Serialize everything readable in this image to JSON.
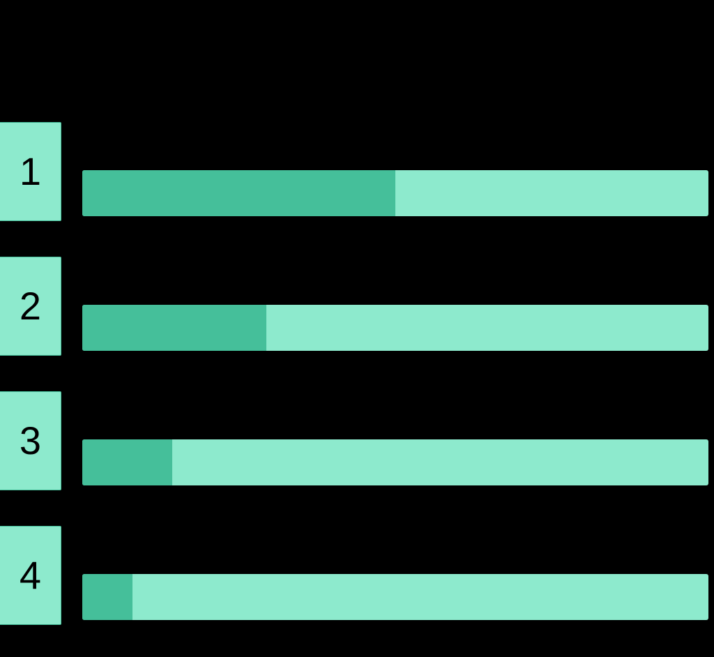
{
  "colors": {
    "background": "#000000",
    "track": "#8deacd",
    "fill": "#45bf9a",
    "box_border": "#45bf9a",
    "label_text": "#000000"
  },
  "rows": [
    {
      "rank": "1",
      "fraction": 0.5
    },
    {
      "rank": "2",
      "fraction": 0.294
    },
    {
      "rank": "3",
      "fraction": 0.144
    },
    {
      "rank": "4",
      "fraction": 0.08
    }
  ],
  "chart_data": {
    "type": "bar",
    "orientation": "horizontal",
    "categories": [
      "1",
      "2",
      "3",
      "4"
    ],
    "values": [
      50,
      29.4,
      14.4,
      8
    ],
    "title": "",
    "xlabel": "",
    "ylabel": "",
    "xlim": [
      0,
      100
    ],
    "grid": false,
    "legend": null,
    "notes": "Progress-style bars: darker fill over lighter full-width track; values as approximate percent of track."
  }
}
